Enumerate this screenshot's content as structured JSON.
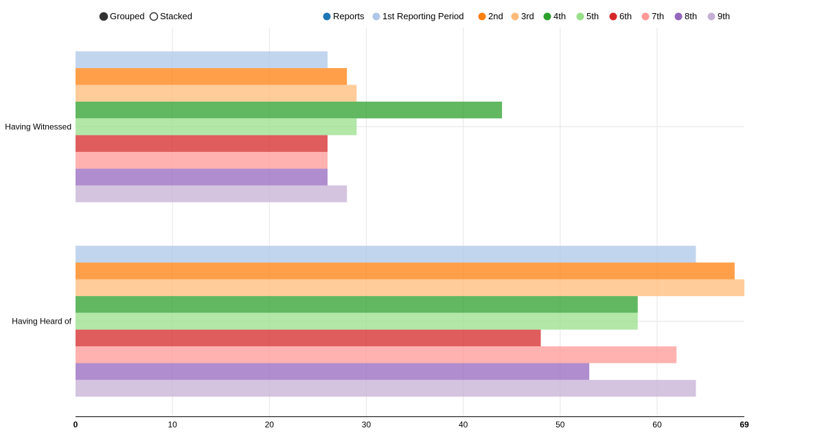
{
  "controls": {
    "grouped_label": "Grouped",
    "stacked_label": "Stacked",
    "selected": "Grouped"
  },
  "colors": {
    "Reports": "#1f77b4",
    "1st Reporting Period": "#aec7e8",
    "2nd": "#ff7f0e",
    "3rd": "#ffbb78",
    "4th": "#2ca02c",
    "5th": "#98df8a",
    "6th": "#d62728",
    "7th": "#ff9896",
    "8th": "#9467bd",
    "9th": "#c5b0d5"
  },
  "chart_data": {
    "type": "bar",
    "orientation": "horizontal",
    "mode": "grouped",
    "categories": [
      "Having Witnessed",
      "Having Heard of"
    ],
    "legend": [
      "Reports",
      "1st Reporting Period",
      "2nd",
      "3rd",
      "4th",
      "5th",
      "6th",
      "7th",
      "8th",
      "9th"
    ],
    "legend_position": "top",
    "series": [
      {
        "name": "1st Reporting Period",
        "values": [
          26,
          64
        ]
      },
      {
        "name": "2nd",
        "values": [
          28,
          68
        ]
      },
      {
        "name": "3rd",
        "values": [
          29,
          69
        ]
      },
      {
        "name": "4th",
        "values": [
          44,
          58
        ]
      },
      {
        "name": "5th",
        "values": [
          29,
          58
        ]
      },
      {
        "name": "6th",
        "values": [
          26,
          48
        ]
      },
      {
        "name": "7th",
        "values": [
          26,
          62
        ]
      },
      {
        "name": "8th",
        "values": [
          26,
          53
        ]
      },
      {
        "name": "9th",
        "values": [
          28,
          64
        ]
      }
    ],
    "xticks": [
      "0",
      "10",
      "20",
      "30",
      "40",
      "50",
      "60"
    ],
    "xmax_label": "69",
    "xlim": [
      0,
      69
    ],
    "grid": true
  }
}
